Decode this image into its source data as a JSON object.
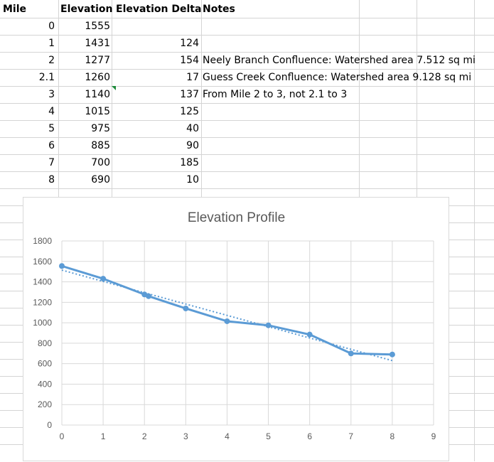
{
  "sheet": {
    "headers": [
      "Mile",
      "Elevation",
      "Elevation Delta",
      "Notes"
    ],
    "rows": [
      {
        "mile": "0",
        "elevation": "1555",
        "delta": "",
        "note": ""
      },
      {
        "mile": "1",
        "elevation": "1431",
        "delta": "124",
        "note": ""
      },
      {
        "mile": "2",
        "elevation": "1277",
        "delta": "154",
        "note": "Neely Branch Confluence: Watershed area 7.512 sq mi"
      },
      {
        "mile": "2.1",
        "elevation": "1260",
        "delta": "17",
        "note": "Guess Creek Confluence: Watershed area 9.128 sq mi"
      },
      {
        "mile": "3",
        "elevation": "1140",
        "delta": "137",
        "note": "From Mile 2 to 3, not 2.1 to 3"
      },
      {
        "mile": "4",
        "elevation": "1015",
        "delta": "125",
        "note": ""
      },
      {
        "mile": "5",
        "elevation": "975",
        "delta": "40",
        "note": ""
      },
      {
        "mile": "6",
        "elevation": "885",
        "delta": "90",
        "note": ""
      },
      {
        "mile": "7",
        "elevation": "700",
        "delta": "185",
        "note": ""
      },
      {
        "mile": "8",
        "elevation": "690",
        "delta": "10",
        "note": ""
      }
    ]
  },
  "chart_data": {
    "type": "scatter",
    "title": "Elevation Profile",
    "xlabel": "",
    "ylabel": "",
    "xlim": [
      0,
      9
    ],
    "ylim": [
      0,
      1800
    ],
    "x_ticks": [
      "0",
      "1",
      "2",
      "3",
      "4",
      "5",
      "6",
      "7",
      "8",
      "9"
    ],
    "y_ticks": [
      "0",
      "200",
      "400",
      "600",
      "800",
      "1000",
      "1200",
      "1400",
      "1600",
      "1800"
    ],
    "grid": "vertical and horizontal",
    "legend": "none",
    "series": [
      {
        "x": [
          0,
          1,
          2,
          2.1,
          3,
          4,
          5,
          6,
          7,
          8
        ],
        "y": [
          1555,
          1431,
          1277,
          1260,
          1140,
          1015,
          975,
          885,
          700,
          690
        ],
        "style": "line with markers",
        "color": "#5b9bd5"
      }
    ],
    "trendline": {
      "type": "linear",
      "style": "dotted",
      "color": "#5b9bd5",
      "from": [
        0,
        1515
      ],
      "to": [
        8,
        630
      ]
    }
  }
}
